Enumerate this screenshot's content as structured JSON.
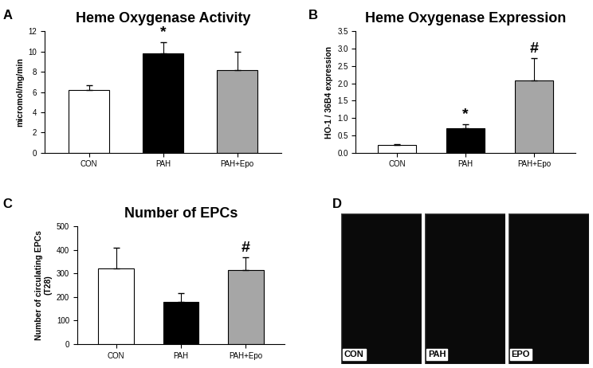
{
  "chart_data": [
    {
      "type": "bar",
      "panel_label": "A",
      "title": "Heme Oxygenase Activity",
      "y_label": "micromol/mg/min",
      "categories": [
        "CON",
        "PAH",
        "PAH+Epo"
      ],
      "values": [
        6.2,
        9.8,
        8.15
      ],
      "errors": [
        0.5,
        1.15,
        1.85
      ],
      "significance": [
        null,
        "*",
        null
      ],
      "colors": [
        "#ffffff",
        "#000000",
        "#a6a6a6"
      ],
      "ylim": [
        0,
        12
      ],
      "yticks": [
        0,
        2,
        4,
        6,
        8,
        10,
        12
      ]
    },
    {
      "type": "bar",
      "panel_label": "B",
      "title": "Heme Oxygenase Expression",
      "y_label": "HO-1 / 36B4 expression",
      "categories": [
        "CON",
        "PAH",
        "PAH+Epo"
      ],
      "values": [
        0.22,
        0.7,
        2.08
      ],
      "errors": [
        0.03,
        0.13,
        0.65
      ],
      "significance": [
        null,
        "*",
        "#"
      ],
      "colors": [
        "#ffffff",
        "#000000",
        "#a6a6a6"
      ],
      "ylim": [
        0,
        3.5
      ],
      "yticks": [
        {
          "value": 0,
          "label": "0.0"
        },
        0.5,
        {
          "value": 1,
          "label": "1.0"
        },
        1.5,
        {
          "value": 2,
          "label": "2.0"
        },
        2.5,
        {
          "value": 3,
          "label": "3.0"
        },
        3.5
      ]
    },
    {
      "type": "bar",
      "panel_label": "C",
      "title": "Number of EPCs",
      "y_label": "Number of circulating EPCs\n(T28)",
      "categories": [
        "CON",
        "PAH",
        "PAH+Epo"
      ],
      "values": [
        320,
        178,
        313
      ],
      "errors": [
        90,
        38,
        55
      ],
      "significance": [
        null,
        null,
        "#"
      ],
      "colors": [
        "#ffffff",
        "#000000",
        "#a6a6a6"
      ],
      "ylim": [
        0,
        500
      ],
      "yticks": [
        0,
        100,
        200,
        300,
        400,
        500
      ]
    }
  ],
  "panel_d": {
    "panel_label": "D",
    "images": [
      "CON",
      "PAH",
      "EPO"
    ]
  }
}
